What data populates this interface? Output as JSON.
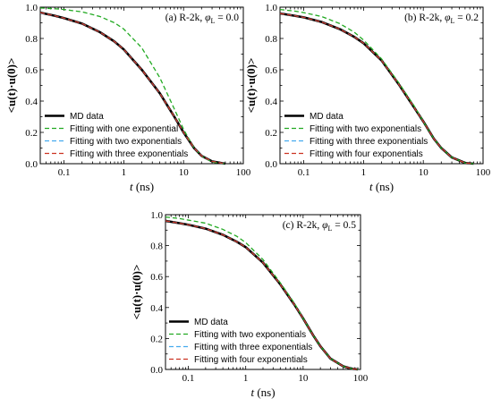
{
  "chart_data": [
    {
      "type": "line",
      "title_prefix": "(a) R-2k, ",
      "title_phi": "φ",
      "title_sub": "L",
      "title_value": " = 0.0",
      "xlabel_var": "t",
      "xlabel_unit": " (ns)",
      "ylabel": "<u(t)·u(0)>",
      "x_scale": "log",
      "xlim": [
        0.04,
        100
      ],
      "ylim": [
        0.0,
        1.0
      ],
      "xticks": [
        0.1,
        1,
        10,
        100
      ],
      "xtick_labels": [
        "0.1",
        "1",
        "10",
        "100"
      ],
      "yticks": [
        0.0,
        0.2,
        0.4,
        0.6,
        0.8,
        1.0
      ],
      "ytick_labels": [
        "0.0",
        "0.2",
        "0.4",
        "0.6",
        "0.8",
        "1.0"
      ],
      "legend_position": "bottom-left",
      "series": [
        {
          "name": "MD data",
          "color": "#000000",
          "dash": "solid",
          "x": [
            0.04,
            0.07,
            0.1,
            0.2,
            0.4,
            0.7,
            1,
            2,
            4,
            7,
            10,
            15,
            20,
            30,
            50
          ],
          "y": [
            0.965,
            0.945,
            0.93,
            0.895,
            0.84,
            0.78,
            0.73,
            0.6,
            0.45,
            0.3,
            0.2,
            0.1,
            0.05,
            0.015,
            0.0
          ]
        },
        {
          "name": "Fitting with one exponential",
          "color": "#22aa22",
          "dash": "dashed",
          "x": [
            0.04,
            0.07,
            0.1,
            0.2,
            0.4,
            0.7,
            1,
            2,
            4,
            7,
            10,
            15,
            20,
            30,
            50
          ],
          "y": [
            0.995,
            0.99,
            0.985,
            0.97,
            0.94,
            0.9,
            0.86,
            0.74,
            0.55,
            0.35,
            0.22,
            0.1,
            0.05,
            0.01,
            0.0
          ]
        },
        {
          "name": "Fitting with two exponentials",
          "color": "#44aaee",
          "dash": "dashed",
          "x": [
            0.04,
            0.07,
            0.1,
            0.2,
            0.4,
            0.7,
            1,
            2,
            4,
            7,
            10,
            15,
            20,
            30,
            50
          ],
          "y": [
            0.963,
            0.945,
            0.93,
            0.895,
            0.84,
            0.78,
            0.73,
            0.6,
            0.45,
            0.3,
            0.2,
            0.1,
            0.05,
            0.015,
            0.0
          ]
        },
        {
          "name": "Fitting with three exponentials",
          "color": "#cc3322",
          "dash": "dashed",
          "x": [
            0.04,
            0.07,
            0.1,
            0.2,
            0.4,
            0.7,
            1,
            2,
            4,
            7,
            10,
            15,
            20,
            30,
            50
          ],
          "y": [
            0.965,
            0.945,
            0.93,
            0.895,
            0.84,
            0.78,
            0.73,
            0.6,
            0.45,
            0.3,
            0.2,
            0.1,
            0.05,
            0.015,
            0.0
          ]
        }
      ]
    },
    {
      "type": "line",
      "title_prefix": "(b) R-2k, ",
      "title_phi": "φ",
      "title_sub": "L",
      "title_value": " = 0.2",
      "xlabel_var": "t",
      "xlabel_unit": " (ns)",
      "ylabel": "<u(t)·u(0)>",
      "x_scale": "log",
      "xlim": [
        0.04,
        100
      ],
      "ylim": [
        0.0,
        1.0
      ],
      "xticks": [
        0.1,
        1,
        10,
        100
      ],
      "xtick_labels": [
        "0.1",
        "1",
        "10",
        "100"
      ],
      "yticks": [
        0.0,
        0.2,
        0.4,
        0.6,
        0.8,
        1.0
      ],
      "ytick_labels": [
        "0.0",
        "0.2",
        "0.4",
        "0.6",
        "0.8",
        "1.0"
      ],
      "legend_position": "bottom-left",
      "series": [
        {
          "name": "MD data",
          "color": "#000000",
          "dash": "solid",
          "x": [
            0.04,
            0.07,
            0.1,
            0.2,
            0.4,
            0.7,
            1,
            2,
            4,
            7,
            10,
            15,
            20,
            30,
            50,
            70
          ],
          "y": [
            0.96,
            0.945,
            0.935,
            0.905,
            0.86,
            0.81,
            0.77,
            0.66,
            0.5,
            0.36,
            0.27,
            0.16,
            0.1,
            0.04,
            0.005,
            0.0
          ]
        },
        {
          "name": "Fitting with two exponentials",
          "color": "#22aa22",
          "dash": "dashed",
          "x": [
            0.04,
            0.07,
            0.1,
            0.2,
            0.4,
            0.7,
            1,
            2,
            4,
            7,
            10,
            15,
            20,
            30,
            50,
            70
          ],
          "y": [
            0.985,
            0.975,
            0.965,
            0.94,
            0.895,
            0.84,
            0.79,
            0.67,
            0.51,
            0.37,
            0.27,
            0.16,
            0.1,
            0.04,
            0.005,
            0.0
          ]
        },
        {
          "name": "Fitting with three exponentials",
          "color": "#44aaee",
          "dash": "dashed",
          "x": [
            0.04,
            0.07,
            0.1,
            0.2,
            0.4,
            0.7,
            1,
            2,
            4,
            7,
            10,
            15,
            20,
            30,
            50,
            70
          ],
          "y": [
            0.96,
            0.945,
            0.935,
            0.905,
            0.86,
            0.81,
            0.77,
            0.66,
            0.5,
            0.36,
            0.27,
            0.16,
            0.1,
            0.04,
            0.005,
            0.0
          ]
        },
        {
          "name": "Fitting with four exponentials",
          "color": "#cc3322",
          "dash": "dashed",
          "x": [
            0.04,
            0.07,
            0.1,
            0.2,
            0.4,
            0.7,
            1,
            2,
            4,
            7,
            10,
            15,
            20,
            30,
            50,
            70
          ],
          "y": [
            0.96,
            0.945,
            0.935,
            0.905,
            0.86,
            0.81,
            0.77,
            0.66,
            0.5,
            0.36,
            0.27,
            0.16,
            0.1,
            0.04,
            0.005,
            0.0
          ]
        }
      ]
    },
    {
      "type": "line",
      "title_prefix": "(c) R-2k, ",
      "title_phi": "φ",
      "title_sub": "L",
      "title_value": " = 0.5",
      "xlabel_var": "t",
      "xlabel_unit": " (ns)",
      "ylabel": "<u(t)·u(0)>",
      "x_scale": "log",
      "xlim": [
        0.04,
        100
      ],
      "ylim": [
        0.0,
        1.0
      ],
      "xticks": [
        0.1,
        1,
        10,
        100
      ],
      "xtick_labels": [
        "0.1",
        "1",
        "10",
        "100"
      ],
      "yticks": [
        0.0,
        0.2,
        0.4,
        0.6,
        0.8,
        1.0
      ],
      "ytick_labels": [
        "0.0",
        "0.2",
        "0.4",
        "0.6",
        "0.8",
        "1.0"
      ],
      "legend_position": "bottom-left",
      "series": [
        {
          "name": "MD data",
          "color": "#000000",
          "dash": "solid",
          "x": [
            0.04,
            0.07,
            0.1,
            0.2,
            0.4,
            0.7,
            1,
            2,
            4,
            7,
            10,
            15,
            20,
            30,
            50,
            70,
            90
          ],
          "y": [
            0.96,
            0.945,
            0.935,
            0.91,
            0.87,
            0.825,
            0.79,
            0.69,
            0.55,
            0.42,
            0.33,
            0.22,
            0.15,
            0.07,
            0.02,
            0.005,
            0.0
          ]
        },
        {
          "name": "Fitting with two exponentials",
          "color": "#22aa22",
          "dash": "dashed",
          "x": [
            0.04,
            0.07,
            0.1,
            0.2,
            0.4,
            0.7,
            1,
            2,
            4,
            7,
            10,
            15,
            20,
            30,
            50,
            70,
            90
          ],
          "y": [
            0.985,
            0.975,
            0.965,
            0.945,
            0.905,
            0.86,
            0.82,
            0.71,
            0.56,
            0.43,
            0.33,
            0.22,
            0.15,
            0.07,
            0.02,
            0.005,
            0.0
          ]
        },
        {
          "name": "Fitting with three exponentials",
          "color": "#44aaee",
          "dash": "dashed",
          "x": [
            0.04,
            0.07,
            0.1,
            0.2,
            0.4,
            0.7,
            1,
            2,
            4,
            7,
            10,
            15,
            20,
            30,
            50,
            70,
            90
          ],
          "y": [
            0.96,
            0.945,
            0.935,
            0.91,
            0.87,
            0.825,
            0.79,
            0.69,
            0.55,
            0.42,
            0.33,
            0.22,
            0.15,
            0.07,
            0.02,
            0.005,
            0.0
          ]
        },
        {
          "name": "Fitting with four exponentials",
          "color": "#cc3322",
          "dash": "dashed",
          "x": [
            0.04,
            0.07,
            0.1,
            0.2,
            0.4,
            0.7,
            1,
            2,
            4,
            7,
            10,
            15,
            20,
            30,
            50,
            70,
            90
          ],
          "y": [
            0.96,
            0.945,
            0.935,
            0.91,
            0.87,
            0.825,
            0.79,
            0.69,
            0.55,
            0.42,
            0.33,
            0.22,
            0.15,
            0.07,
            0.02,
            0.005,
            0.0
          ]
        }
      ]
    }
  ]
}
